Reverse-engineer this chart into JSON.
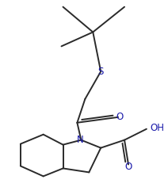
{
  "bg_color": "#ffffff",
  "line_color": "#2a2a2a",
  "text_color": "#1a1aaa",
  "line_width": 1.4,
  "figsize": [
    2.12,
    2.41
  ],
  "dpi": 100,
  "atoms": {
    "S": {
      "symbol": "S",
      "fs": 8
    },
    "N": {
      "symbol": "N",
      "fs": 8
    },
    "O1": {
      "symbol": "O",
      "fs": 8
    },
    "O2": {
      "symbol": "O",
      "fs": 8
    },
    "OH": {
      "symbol": "OH",
      "fs": 8
    }
  }
}
